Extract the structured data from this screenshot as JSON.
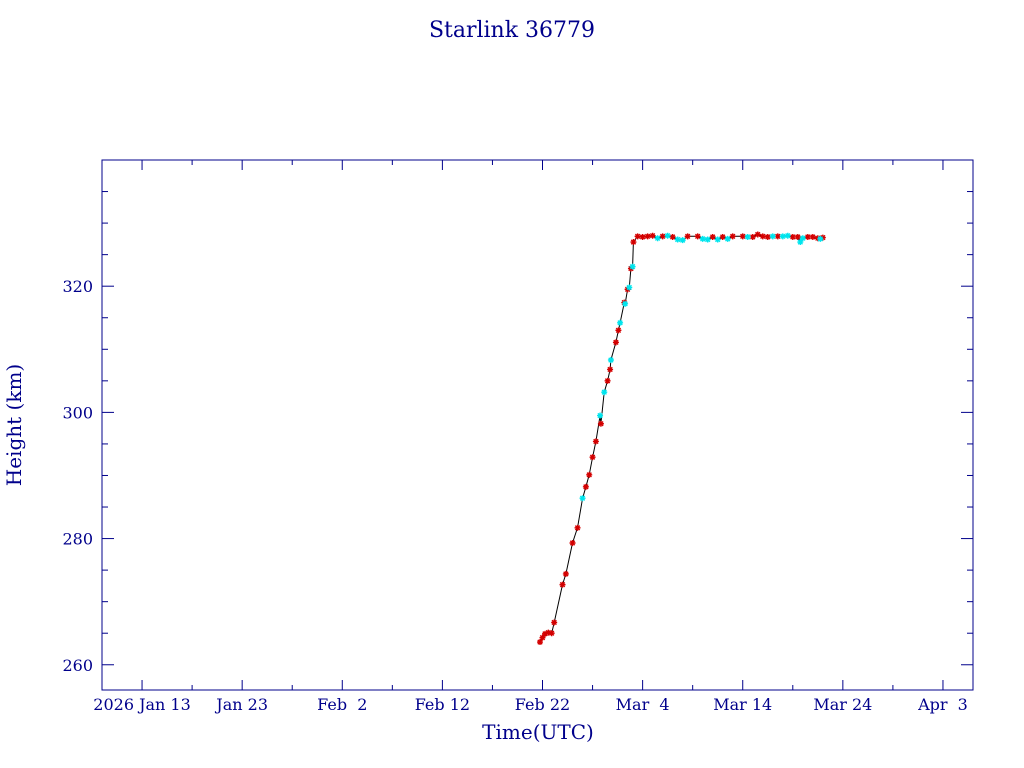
{
  "chart_data": {
    "type": "scatter",
    "title": "Starlink 36779",
    "xlabel": "Time(UTC)",
    "ylabel": "Height (km)",
    "x_unit": "date (UTC)",
    "xlim": [
      "2026-01-09",
      "2026-04-06"
    ],
    "ylim": [
      256,
      340
    ],
    "x_ticks": [
      {
        "date": "2026-01-13",
        "label": "2026 Jan 13"
      },
      {
        "date": "2026-01-23",
        "label": "Jan 23"
      },
      {
        "date": "2026-02-02",
        "label": "Feb  2"
      },
      {
        "date": "2026-02-12",
        "label": "Feb 12"
      },
      {
        "date": "2026-02-22",
        "label": "Feb 22"
      },
      {
        "date": "2026-03-04",
        "label": "Mar  4"
      },
      {
        "date": "2026-03-14",
        "label": "Mar 14"
      },
      {
        "date": "2026-03-24",
        "label": "Mar 24"
      },
      {
        "date": "2026-04-03",
        "label": "Apr  3"
      }
    ],
    "y_ticks": [
      260,
      280,
      300,
      320
    ],
    "grid": false,
    "colors": {
      "axes": "#00008b",
      "line": "#000000",
      "series_red": "#d40000",
      "series_cyan": "#00e5ee"
    },
    "series": [
      {
        "color": "red",
        "marker": "asterisk",
        "points": [
          [
            "2026-02-21T18:00",
            263.6
          ],
          [
            "2026-02-22T00:00",
            264.3
          ],
          [
            "2026-02-22T06:00",
            264.9
          ],
          [
            "2026-02-22T14:00",
            265.1
          ],
          [
            "2026-02-22T22:00",
            265.0
          ],
          [
            "2026-02-23T04:00",
            266.7
          ],
          [
            "2026-02-24T00:00",
            272.7
          ],
          [
            "2026-02-24T08:00",
            274.4
          ],
          [
            "2026-02-25T00:00",
            279.3
          ],
          [
            "2026-02-25T12:00",
            281.7
          ],
          [
            "2026-02-26T08:00",
            288.2
          ],
          [
            "2026-02-26T16:00",
            290.1
          ],
          [
            "2026-02-27T00:00",
            292.9
          ],
          [
            "2026-02-27T08:00",
            295.4
          ],
          [
            "2026-02-27T20:00",
            298.2
          ],
          [
            "2026-02-28T12:00",
            305.0
          ],
          [
            "2026-02-28T18:00",
            306.8
          ],
          [
            "2026-03-01T08:00",
            311.1
          ],
          [
            "2026-03-01T14:00",
            313.0
          ],
          [
            "2026-03-02T04:00",
            317.4
          ],
          [
            "2026-03-02T12:00",
            319.5
          ],
          [
            "2026-03-02T20:00",
            322.8
          ],
          [
            "2026-03-03T02:00",
            327.0
          ],
          [
            "2026-03-03T12:00",
            327.9
          ],
          [
            "2026-03-04T00:00",
            327.8
          ],
          [
            "2026-03-04T12:00",
            327.9
          ],
          [
            "2026-03-05T00:00",
            328.0
          ],
          [
            "2026-03-06T00:00",
            327.9
          ],
          [
            "2026-03-07T00:00",
            327.8
          ],
          [
            "2026-03-08T12:00",
            327.9
          ],
          [
            "2026-03-09T12:00",
            327.9
          ],
          [
            "2026-03-11T00:00",
            327.8
          ],
          [
            "2026-03-12T00:00",
            327.8
          ],
          [
            "2026-03-13T00:00",
            327.9
          ],
          [
            "2026-03-14T00:00",
            327.9
          ],
          [
            "2026-03-15T00:00",
            327.8
          ],
          [
            "2026-03-15T12:00",
            328.2
          ],
          [
            "2026-03-16T00:00",
            327.9
          ],
          [
            "2026-03-16T12:00",
            327.8
          ],
          [
            "2026-03-17T12:00",
            327.9
          ],
          [
            "2026-03-19T00:00",
            327.8
          ],
          [
            "2026-03-19T12:00",
            327.8
          ],
          [
            "2026-03-20T12:00",
            327.8
          ],
          [
            "2026-03-21T00:00",
            327.8
          ],
          [
            "2026-03-21T12:00",
            327.6
          ],
          [
            "2026-03-22T00:00",
            327.7
          ]
        ]
      },
      {
        "color": "cyan",
        "marker": "asterisk",
        "points": [
          [
            "2026-02-26T00:00",
            286.4
          ],
          [
            "2026-02-27T18:00",
            299.5
          ],
          [
            "2026-02-28T04:00",
            303.2
          ],
          [
            "2026-02-28T20:00",
            308.3
          ],
          [
            "2026-03-01T18:00",
            314.2
          ],
          [
            "2026-03-02T06:00",
            317.2
          ],
          [
            "2026-03-02T16:00",
            319.8
          ],
          [
            "2026-03-03T00:00",
            323.1
          ],
          [
            "2026-03-05T12:00",
            327.6
          ],
          [
            "2026-03-06T12:00",
            328.0
          ],
          [
            "2026-03-07T12:00",
            327.4
          ],
          [
            "2026-03-08T00:00",
            327.3
          ],
          [
            "2026-03-10T00:00",
            327.5
          ],
          [
            "2026-03-10T12:00",
            327.4
          ],
          [
            "2026-03-11T12:00",
            327.4
          ],
          [
            "2026-03-12T12:00",
            327.5
          ],
          [
            "2026-03-14T12:00",
            327.8
          ],
          [
            "2026-03-17T00:00",
            327.9
          ],
          [
            "2026-03-18T00:00",
            327.9
          ],
          [
            "2026-03-18T12:00",
            328.0
          ],
          [
            "2026-03-19T18:00",
            327.0
          ],
          [
            "2026-03-20T00:00",
            327.6
          ],
          [
            "2026-03-21T18:00",
            327.5
          ]
        ]
      }
    ]
  }
}
